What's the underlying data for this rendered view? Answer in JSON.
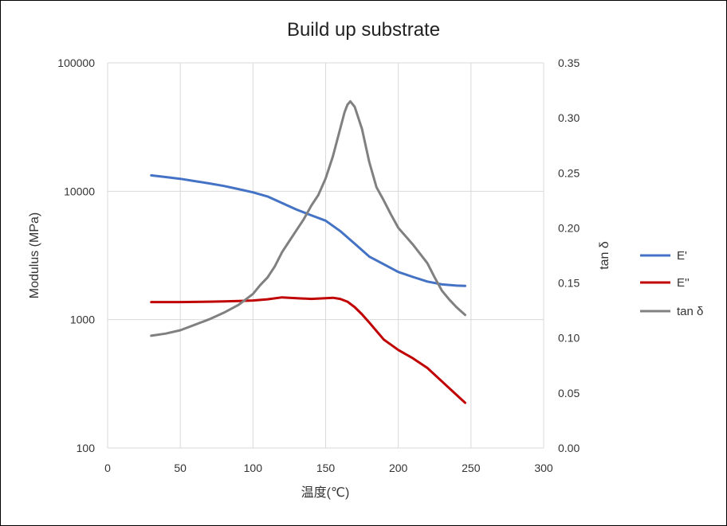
{
  "chart_data": {
    "type": "line",
    "title": "Build up substrate",
    "xlabel": "温度(℃)",
    "ylabel": "Modulus (MPa)",
    "y2label": "tan δ",
    "xlim": [
      0,
      300
    ],
    "ylim": [
      100,
      100000
    ],
    "yscale": "log",
    "y2lim": [
      0,
      0.35
    ],
    "grid": true,
    "legend_position": "right",
    "x_ticks": [
      "0",
      "50",
      "100",
      "150",
      "200",
      "250",
      "300"
    ],
    "y_ticks": [
      "100",
      "1000",
      "10000",
      "100000"
    ],
    "y2_ticks": [
      "0.00",
      "0.05",
      "0.10",
      "0.15",
      "0.20",
      "0.25",
      "0.30",
      "0.35"
    ],
    "series": [
      {
        "name": "E'",
        "axis": "left",
        "color": "#4472C4",
        "x": [
          30,
          40,
          50,
          60,
          70,
          80,
          90,
          100,
          110,
          120,
          130,
          140,
          150,
          160,
          170,
          180,
          190,
          200,
          210,
          220,
          230,
          240,
          246
        ],
        "values": [
          13300,
          12900,
          12500,
          12000,
          11500,
          11000,
          10400,
          9800,
          9100,
          8100,
          7200,
          6500,
          5900,
          4900,
          3900,
          3100,
          2700,
          2350,
          2150,
          1980,
          1880,
          1840,
          1830
        ]
      },
      {
        "name": "E''",
        "axis": "left",
        "color": "#C00000",
        "x": [
          30,
          40,
          50,
          60,
          70,
          80,
          90,
          100,
          110,
          120,
          130,
          140,
          150,
          155,
          160,
          165,
          170,
          175,
          180,
          190,
          200,
          210,
          220,
          230,
          240,
          246
        ],
        "values": [
          1370,
          1370,
          1370,
          1375,
          1380,
          1385,
          1395,
          1410,
          1440,
          1490,
          1470,
          1450,
          1470,
          1480,
          1450,
          1380,
          1250,
          1100,
          950,
          700,
          580,
          500,
          420,
          330,
          260,
          225
        ]
      },
      {
        "name": "tan δ",
        "axis": "right",
        "color": "#808080",
        "x": [
          30,
          40,
          50,
          60,
          70,
          80,
          90,
          100,
          105,
          110,
          115,
          120,
          125,
          130,
          135,
          140,
          145,
          150,
          155,
          160,
          163,
          165,
          167,
          170,
          175,
          180,
          185,
          190,
          195,
          200,
          210,
          220,
          225,
          230,
          235,
          240,
          246
        ],
        "values": [
          0.102,
          0.104,
          0.107,
          0.112,
          0.117,
          0.123,
          0.13,
          0.14,
          0.148,
          0.155,
          0.165,
          0.178,
          0.188,
          0.198,
          0.208,
          0.22,
          0.23,
          0.245,
          0.265,
          0.29,
          0.305,
          0.312,
          0.315,
          0.31,
          0.29,
          0.26,
          0.237,
          0.225,
          0.212,
          0.2,
          0.185,
          0.168,
          0.155,
          0.143,
          0.135,
          0.128,
          0.121
        ]
      }
    ]
  }
}
